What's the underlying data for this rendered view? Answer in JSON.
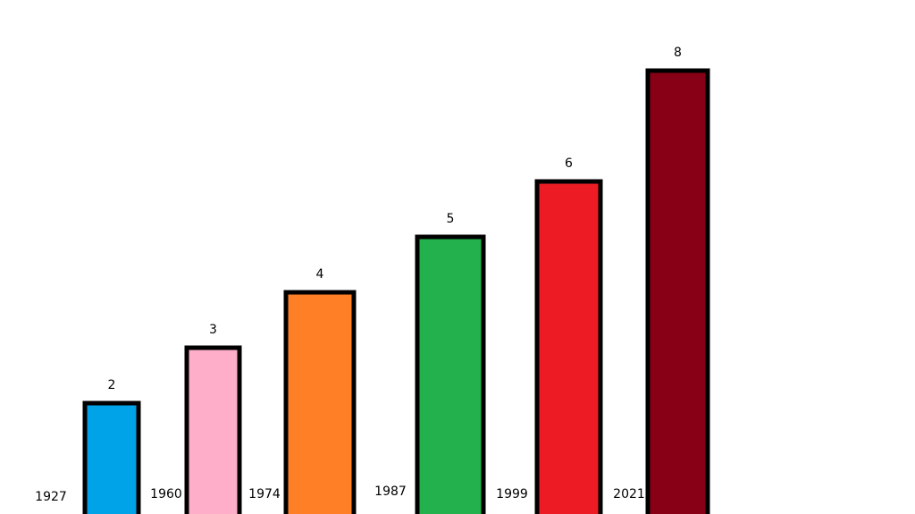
{
  "chart_data": {
    "type": "bar",
    "categories": [
      "1927",
      "1960",
      "1974",
      "1987",
      "1999",
      "2021"
    ],
    "values": [
      2,
      3,
      4,
      5,
      6,
      8
    ],
    "colors": [
      "#00a2e8",
      "#ffaec9",
      "#ff7f27",
      "#22b14c",
      "#ed1c24",
      "#880015"
    ]
  }
}
